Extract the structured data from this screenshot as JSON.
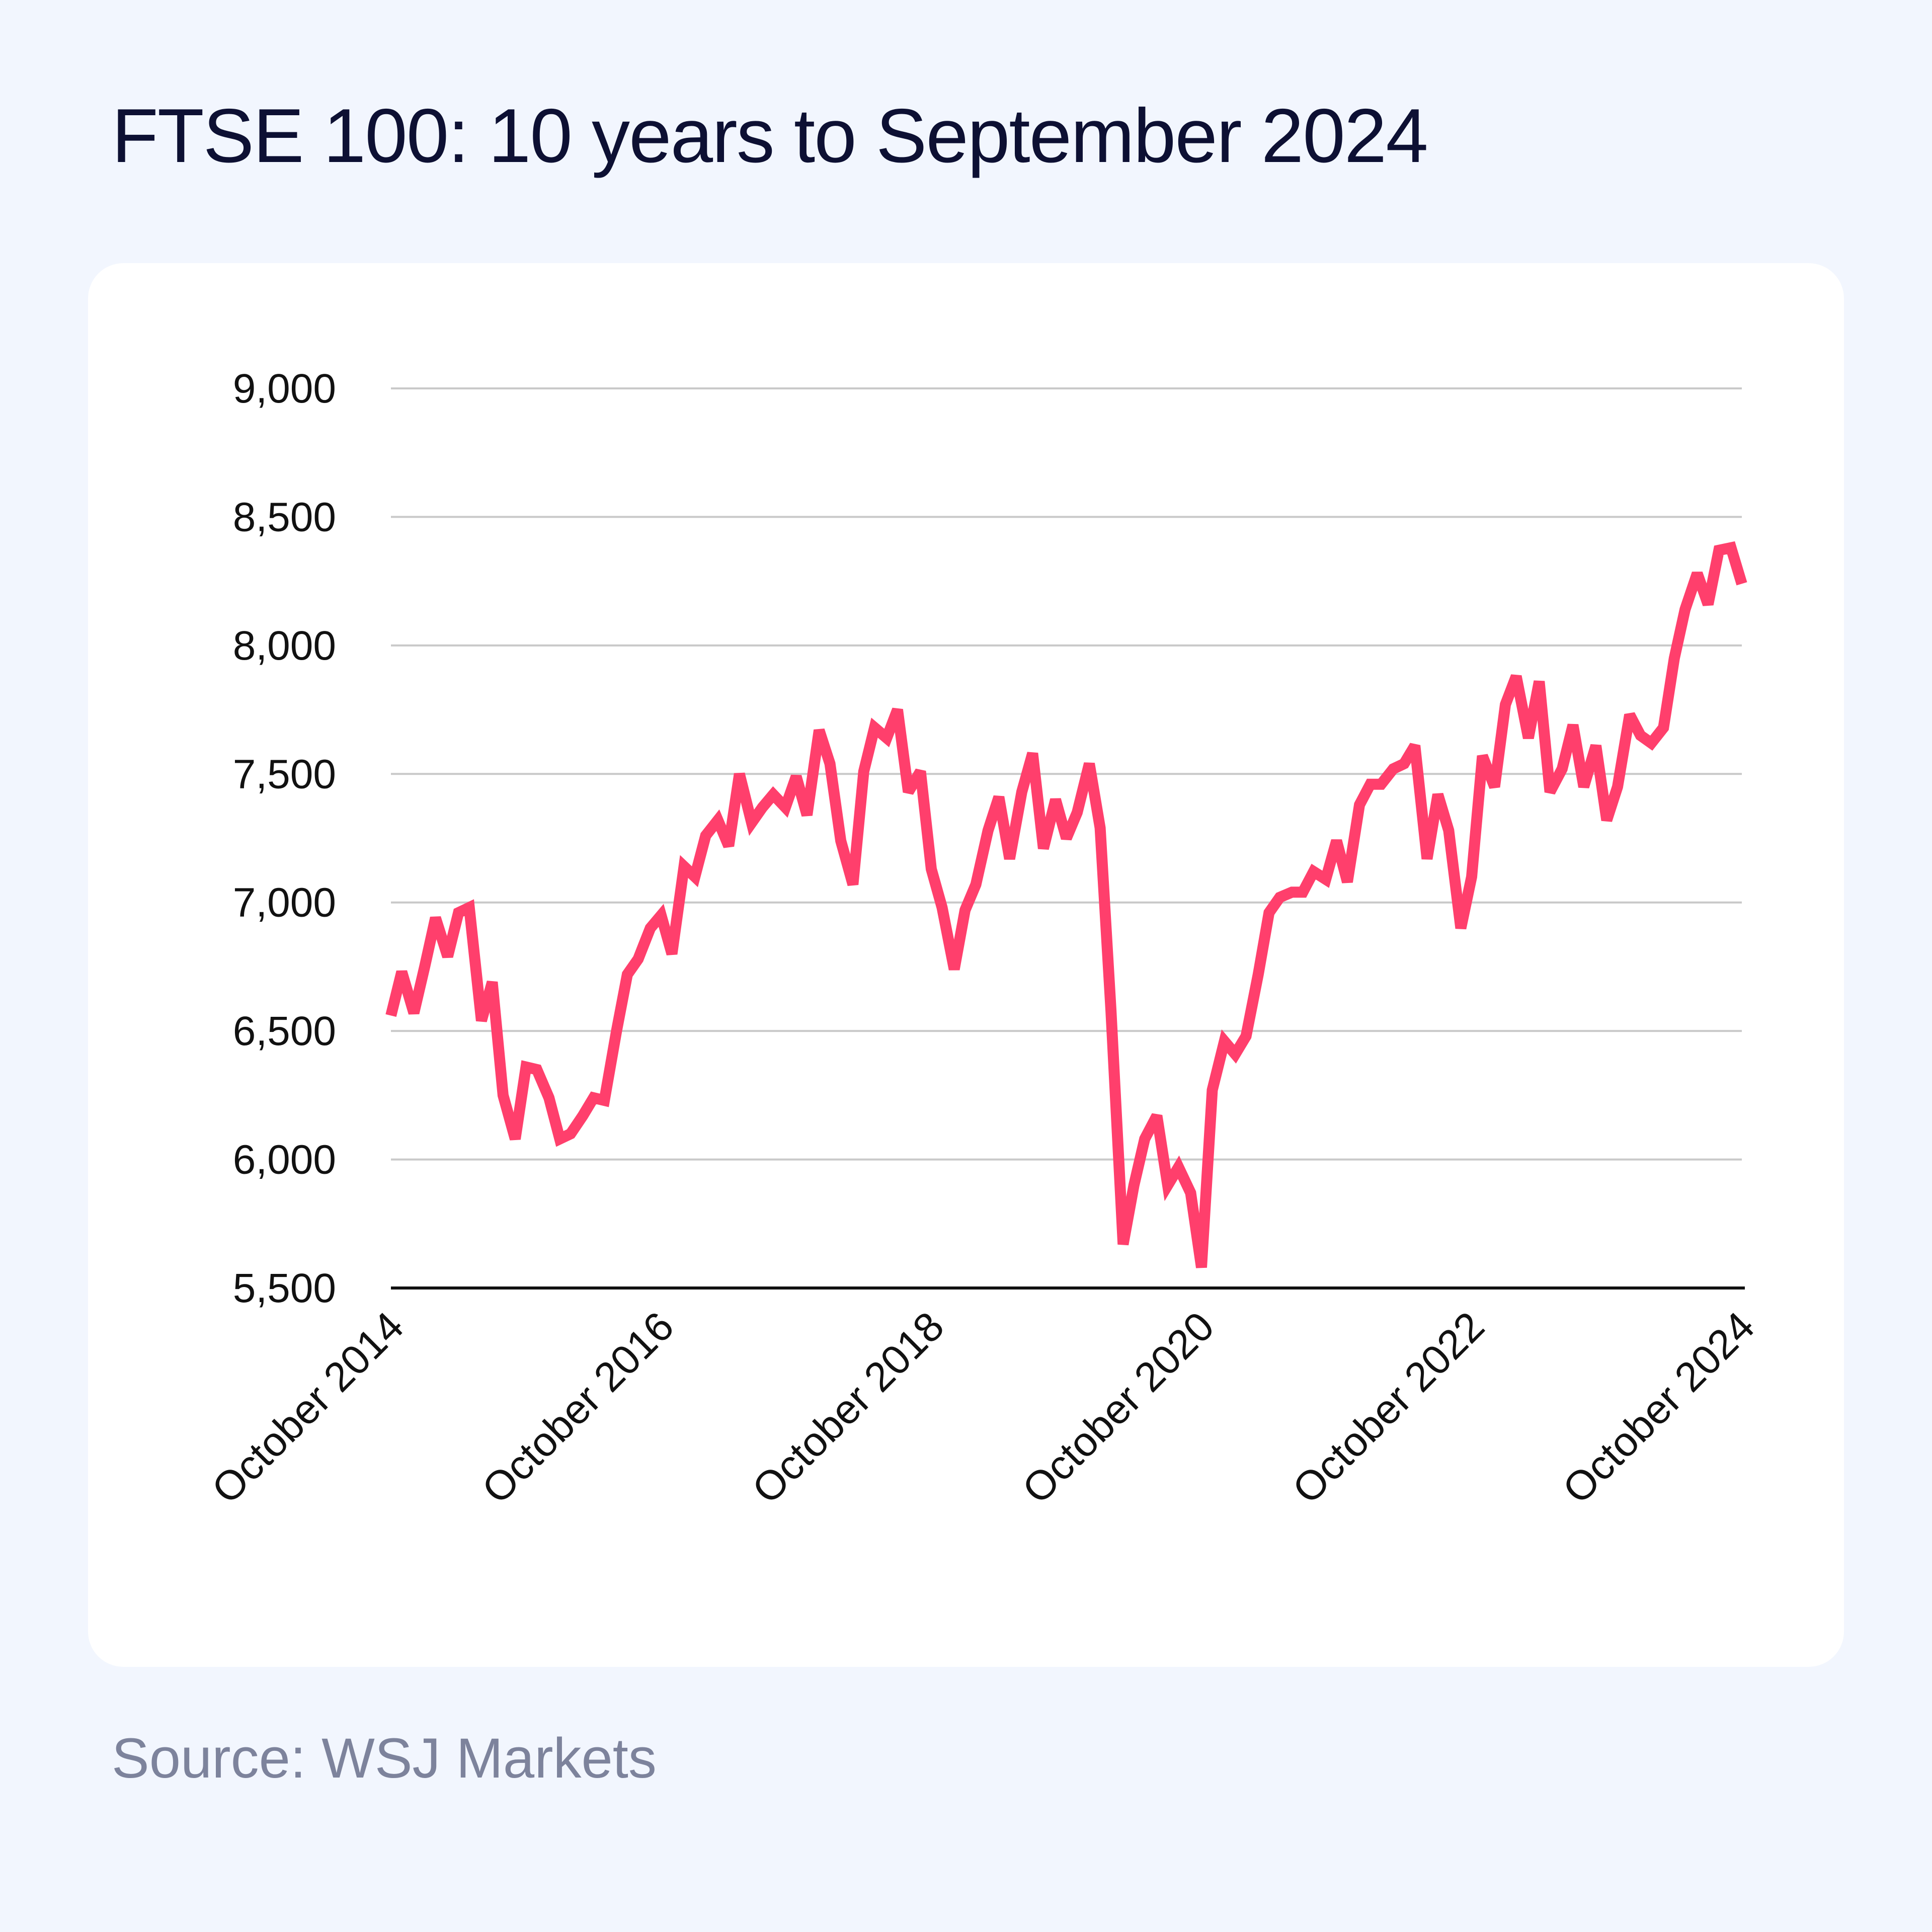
{
  "title": "FTSE 100: 10 years to September 2024",
  "source": "Source: WSJ Markets",
  "colors": {
    "background": "#f2f6fe",
    "card": "#ffffff",
    "line": "#ff3f6c",
    "grid": "#c9c9c9",
    "axis": "#111111",
    "title": "#0d1033",
    "source": "#7d839c"
  },
  "chart_data": {
    "type": "line",
    "title": "FTSE 100: 10 years to September 2024",
    "xlabel": "",
    "ylabel": "",
    "ylim": [
      5500,
      9000
    ],
    "xlim": [
      2014.75,
      2024.75
    ],
    "grid": true,
    "legend": "none",
    "y_ticks": [
      {
        "value": 5500,
        "label": "5,500"
      },
      {
        "value": 6000,
        "label": "6,000"
      },
      {
        "value": 6500,
        "label": "6,500"
      },
      {
        "value": 7000,
        "label": "7,000"
      },
      {
        "value": 7500,
        "label": "7,500"
      },
      {
        "value": 8000,
        "label": "8,000"
      },
      {
        "value": 8500,
        "label": "8,500"
      },
      {
        "value": 9000,
        "label": "9,000"
      }
    ],
    "x_ticks": [
      {
        "value": 2014.75,
        "label": "October 2014"
      },
      {
        "value": 2016.75,
        "label": "October 2016"
      },
      {
        "value": 2018.75,
        "label": "October 2018"
      },
      {
        "value": 2020.75,
        "label": "October 2020"
      },
      {
        "value": 2022.75,
        "label": "October 2022"
      },
      {
        "value": 2024.75,
        "label": "October 2024"
      }
    ],
    "series": [
      {
        "color": "#ff3f6c",
        "points": [
          [
            2014.75,
            6560
          ],
          [
            2014.83,
            6730
          ],
          [
            2014.92,
            6570
          ],
          [
            2015.0,
            6750
          ],
          [
            2015.08,
            6940
          ],
          [
            2015.17,
            6790
          ],
          [
            2015.25,
            6960
          ],
          [
            2015.33,
            6980
          ],
          [
            2015.42,
            6540
          ],
          [
            2015.5,
            6690
          ],
          [
            2015.58,
            6250
          ],
          [
            2015.67,
            6080
          ],
          [
            2015.75,
            6360
          ],
          [
            2015.83,
            6350
          ],
          [
            2015.92,
            6240
          ],
          [
            2016.0,
            6080
          ],
          [
            2016.08,
            6100
          ],
          [
            2016.17,
            6170
          ],
          [
            2016.25,
            6240
          ],
          [
            2016.33,
            6230
          ],
          [
            2016.42,
            6500
          ],
          [
            2016.5,
            6720
          ],
          [
            2016.58,
            6780
          ],
          [
            2016.67,
            6900
          ],
          [
            2016.75,
            6950
          ],
          [
            2016.83,
            6800
          ],
          [
            2016.92,
            7140
          ],
          [
            2017.0,
            7100
          ],
          [
            2017.08,
            7260
          ],
          [
            2017.17,
            7320
          ],
          [
            2017.25,
            7220
          ],
          [
            2017.33,
            7500
          ],
          [
            2017.42,
            7310
          ],
          [
            2017.5,
            7370
          ],
          [
            2017.58,
            7420
          ],
          [
            2017.67,
            7370
          ],
          [
            2017.75,
            7490
          ],
          [
            2017.83,
            7340
          ],
          [
            2017.92,
            7670
          ],
          [
            2018.0,
            7540
          ],
          [
            2018.08,
            7240
          ],
          [
            2018.17,
            7070
          ],
          [
            2018.25,
            7510
          ],
          [
            2018.33,
            7680
          ],
          [
            2018.42,
            7640
          ],
          [
            2018.5,
            7750
          ],
          [
            2018.58,
            7430
          ],
          [
            2018.67,
            7510
          ],
          [
            2018.75,
            7130
          ],
          [
            2018.83,
            6980
          ],
          [
            2018.92,
            6740
          ],
          [
            2019.0,
            6970
          ],
          [
            2019.08,
            7070
          ],
          [
            2019.17,
            7280
          ],
          [
            2019.25,
            7410
          ],
          [
            2019.33,
            7170
          ],
          [
            2019.42,
            7430
          ],
          [
            2019.5,
            7580
          ],
          [
            2019.58,
            7210
          ],
          [
            2019.67,
            7400
          ],
          [
            2019.75,
            7250
          ],
          [
            2019.83,
            7350
          ],
          [
            2019.92,
            7540
          ],
          [
            2020.0,
            7290
          ],
          [
            2020.08,
            6580
          ],
          [
            2020.17,
            5670
          ],
          [
            2020.25,
            5900
          ],
          [
            2020.33,
            6080
          ],
          [
            2020.42,
            6170
          ],
          [
            2020.5,
            5900
          ],
          [
            2020.58,
            5970
          ],
          [
            2020.67,
            5870
          ],
          [
            2020.75,
            5580
          ],
          [
            2020.83,
            6270
          ],
          [
            2020.92,
            6460
          ],
          [
            2021.0,
            6410
          ],
          [
            2021.08,
            6480
          ],
          [
            2021.17,
            6720
          ],
          [
            2021.25,
            6960
          ],
          [
            2021.33,
            7020
          ],
          [
            2021.42,
            7040
          ],
          [
            2021.5,
            7040
          ],
          [
            2021.58,
            7120
          ],
          [
            2021.67,
            7090
          ],
          [
            2021.75,
            7240
          ],
          [
            2021.83,
            7080
          ],
          [
            2021.92,
            7380
          ],
          [
            2022.0,
            7460
          ],
          [
            2022.08,
            7460
          ],
          [
            2022.17,
            7520
          ],
          [
            2022.25,
            7540
          ],
          [
            2022.33,
            7610
          ],
          [
            2022.42,
            7170
          ],
          [
            2022.5,
            7420
          ],
          [
            2022.58,
            7280
          ],
          [
            2022.67,
            6900
          ],
          [
            2022.75,
            7100
          ],
          [
            2022.83,
            7570
          ],
          [
            2022.92,
            7450
          ],
          [
            2023.0,
            7770
          ],
          [
            2023.08,
            7880
          ],
          [
            2023.17,
            7640
          ],
          [
            2023.25,
            7860
          ],
          [
            2023.33,
            7430
          ],
          [
            2023.42,
            7520
          ],
          [
            2023.5,
            7690
          ],
          [
            2023.58,
            7450
          ],
          [
            2023.67,
            7610
          ],
          [
            2023.75,
            7320
          ],
          [
            2023.83,
            7450
          ],
          [
            2023.92,
            7730
          ],
          [
            2024.0,
            7650
          ],
          [
            2024.08,
            7620
          ],
          [
            2024.17,
            7680
          ],
          [
            2024.25,
            7950
          ],
          [
            2024.33,
            8140
          ],
          [
            2024.42,
            8280
          ],
          [
            2024.5,
            8160
          ],
          [
            2024.58,
            8370
          ],
          [
            2024.67,
            8380
          ],
          [
            2024.75,
            8240
          ]
        ]
      }
    ]
  }
}
